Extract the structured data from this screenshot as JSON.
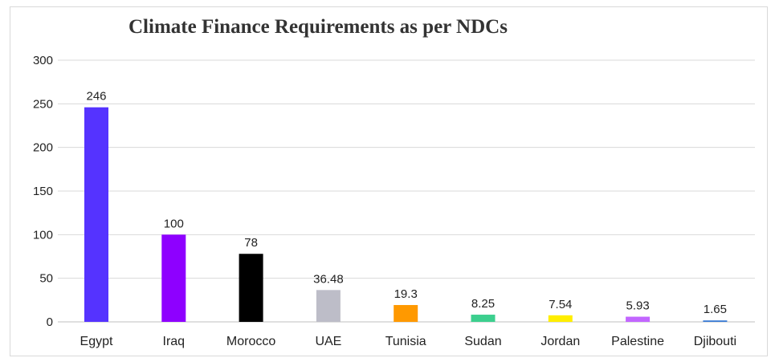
{
  "chart_data": {
    "type": "bar",
    "title": "Climate Finance Requirements as per NDCs",
    "categories": [
      "Egypt",
      "Iraq",
      "Morocco",
      "UAE",
      "Tunisia",
      "Sudan",
      "Jordan",
      "Palestine",
      "Djibouti"
    ],
    "values": [
      246,
      100,
      78,
      36.48,
      19.3,
      8.25,
      7.54,
      5.93,
      1.65
    ],
    "data_labels": [
      "246",
      "100",
      "78",
      "36.48",
      "19.3",
      "8.25",
      "7.54",
      "5.93",
      "1.65"
    ],
    "colors": [
      "#5533ff",
      "#8e00ff",
      "#000000",
      "#bdbdc8",
      "#ff9900",
      "#3ccf8e",
      "#ffee00",
      "#c266ff",
      "#3a7bd5"
    ],
    "ylim": [
      0,
      300
    ],
    "yticks": [
      "0",
      "50",
      "100",
      "150",
      "200",
      "250",
      "300"
    ],
    "grid": true,
    "legend": "none"
  }
}
